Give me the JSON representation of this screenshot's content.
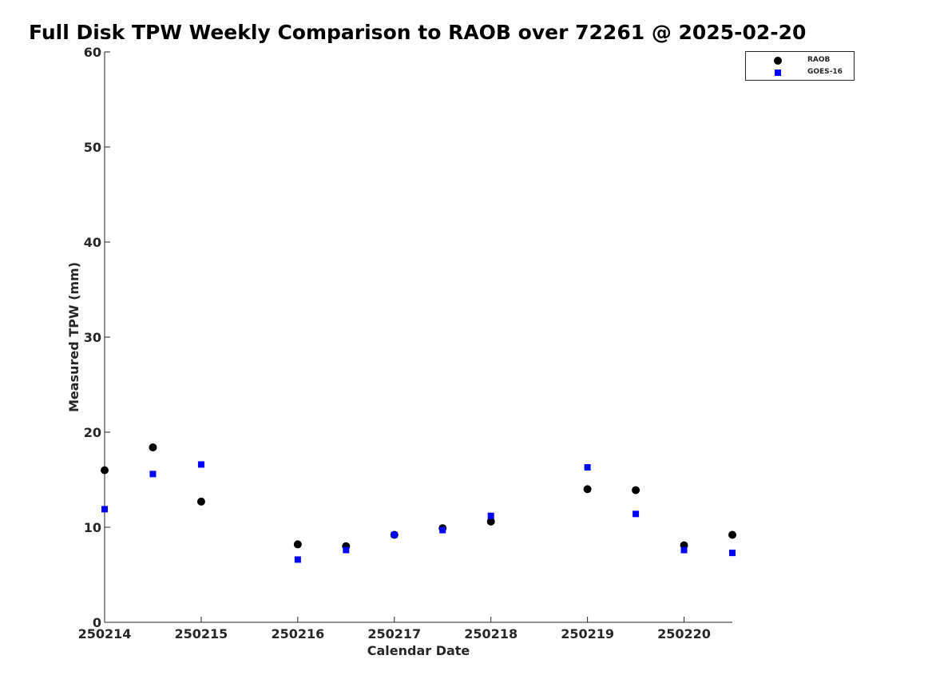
{
  "chart_data": {
    "type": "scatter",
    "title": "Full Disk TPW Weekly Comparison to RAOB over 72261 @ 2025-02-20",
    "xlabel": "Calendar Date",
    "ylabel": "Measured TPW (mm)",
    "x_tick_labels": [
      "250214",
      "250215",
      "250216",
      "250217",
      "250218",
      "250219",
      "250220"
    ],
    "y_ticks": [
      0,
      10,
      20,
      30,
      40,
      50,
      60
    ],
    "xlim": [
      250214,
      250220.5
    ],
    "ylim": [
      0,
      60
    ],
    "grid": false,
    "legend_position": "top-right",
    "series": [
      {
        "name": "RAOB",
        "marker": "circle",
        "color": "#000000",
        "x": [
          250214,
          250214.5,
          250215,
          250216,
          250216.5,
          250217,
          250217.5,
          250218,
          250219,
          250219.5,
          250220,
          250220.5
        ],
        "y": [
          16.0,
          18.4,
          12.7,
          8.2,
          8.0,
          9.2,
          9.9,
          10.6,
          14.0,
          13.9,
          8.1,
          9.2
        ]
      },
      {
        "name": "GOES-16",
        "marker": "square",
        "color": "#0000ff",
        "x": [
          250214,
          250214.5,
          250215,
          250216,
          250216.5,
          250217,
          250217.5,
          250218,
          250219,
          250219.5,
          250220,
          250220.5
        ],
        "y": [
          11.9,
          15.6,
          16.6,
          6.6,
          7.6,
          9.2,
          9.7,
          11.2,
          16.3,
          11.4,
          7.6,
          7.3
        ]
      }
    ]
  }
}
